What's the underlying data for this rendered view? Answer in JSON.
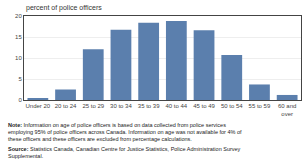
{
  "chart_data": {
    "type": "bar",
    "y_label": "percent of police officers",
    "categories": [
      "Under 20",
      "20 to 24",
      "25 to 29",
      "30 to 34",
      "35 to 39",
      "40 to 44",
      "45 to 49",
      "50 to 54",
      "55 to 59",
      "60 and\nover"
    ],
    "values": [
      0.3,
      2.5,
      12.1,
      16.7,
      18.4,
      18.8,
      16.6,
      10.7,
      3.7,
      1.2
    ],
    "color": "#5b7fad",
    "ylim": [
      0,
      20
    ],
    "yticks": [
      0,
      5,
      10,
      15,
      20
    ],
    "grid": true,
    "annotations": [
      "Note: Information on age of police officers is based on data collected from police services employing 95% of police officers across Canada. Information on age was not available for 4% of these officers and these officers are excluded from percentage calculations.",
      "Source: Statistics Canada, Canadian Centre for Justice Statistics, Police Administration Survey Supplemental."
    ]
  }
}
